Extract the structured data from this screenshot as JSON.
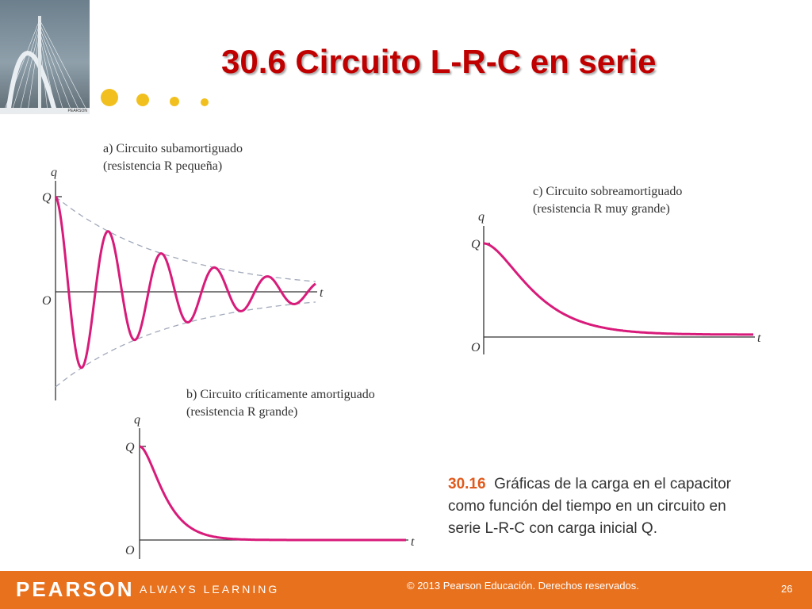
{
  "slide": {
    "title": "30.6 Circuito L-R-C en serie",
    "accent_color": "#c00000",
    "bullet_color": "#f2c01e"
  },
  "figure": {
    "panel_a": {
      "caption_line1": "a) Circuito subamortiguado",
      "caption_line2": "(resistencia R pequeña)"
    },
    "panel_b": {
      "caption_line1": "b) Circuito críticamente amortiguado",
      "caption_line2": "(resistencia R grande)"
    },
    "panel_c": {
      "caption_line1": "c) Circuito sobreamortiguado",
      "caption_line2": "(resistencia R muy grande)"
    },
    "axis_labels": {
      "y": "q",
      "x": "t",
      "origin": "O",
      "initial": "Q"
    },
    "curve_color": "#d81b7a",
    "envelope_color": "#a0a8b8",
    "caption_number": "30.16",
    "caption_text": "Gráficas de la carga en el capacitor como función del tiempo en un circuito en serie L-R-C con carga inicial Q.",
    "caption_line1": "Gráficas de la carga en el capacitor",
    "caption_line2": "como función del tiempo en un circuito en",
    "caption_line3": "serie L-R-C con carga inicial Q."
  },
  "footer": {
    "brand": "PEARSON",
    "tagline": "ALWAYS LEARNING",
    "copyright": "© 2013 Pearson Educación. Derechos reservados.",
    "page_number": "26",
    "background_color": "#e8711d"
  },
  "book_cover": {
    "publisher": "PEARSON"
  }
}
